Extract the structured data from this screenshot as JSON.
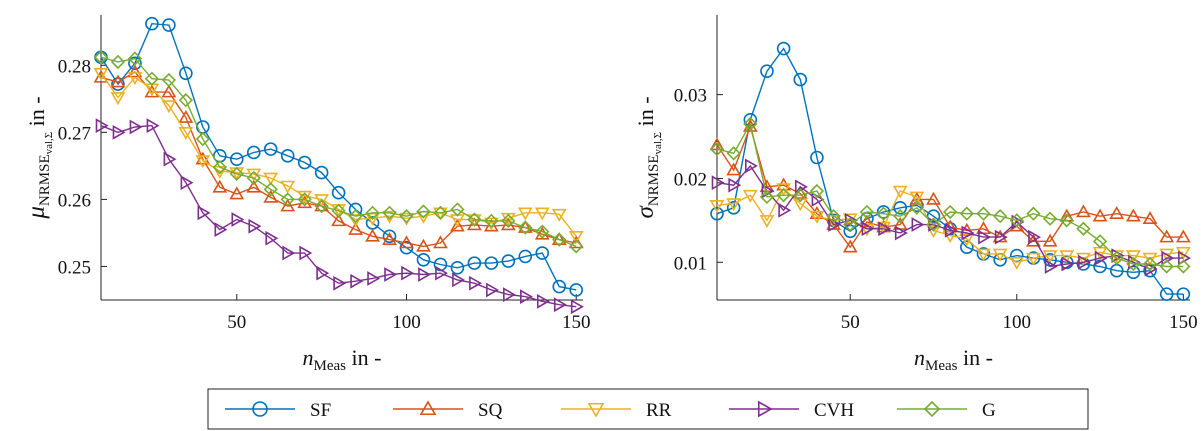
{
  "chart_data": [
    {
      "type": "line",
      "ylabel_main": "μ",
      "ylabel_sub": "NRMSE",
      "ylabel_subsub": "val,Σ",
      "ylabel_unit": " in -",
      "xlabel_main": "n",
      "xlabel_sub": "Meas",
      "xlabel_unit": " in -",
      "xlim": [
        10,
        152
      ],
      "ylim": [
        0.245,
        0.2875
      ],
      "xticks": [
        50,
        100,
        150
      ],
      "yticks": [
        0.25,
        0.26,
        0.27,
        0.28
      ],
      "ytick_labels": [
        "0.25",
        "0.26",
        "0.27",
        "0.28"
      ],
      "x": [
        10,
        15,
        20,
        25,
        30,
        35,
        40,
        45,
        50,
        55,
        60,
        65,
        70,
        75,
        80,
        85,
        90,
        95,
        100,
        105,
        110,
        115,
        120,
        125,
        130,
        135,
        140,
        145,
        150
      ],
      "series": [
        {
          "name": "SF",
          "values": [
            0.2812,
            0.2772,
            0.2803,
            0.2862,
            0.286,
            0.2788,
            0.2708,
            0.2665,
            0.266,
            0.267,
            0.2675,
            0.2665,
            0.2655,
            0.264,
            0.261,
            0.2585,
            0.2565,
            0.2545,
            0.2528,
            0.251,
            0.2503,
            0.2498,
            0.2505,
            0.2505,
            0.2508,
            0.2515,
            0.252,
            0.247,
            0.2465
          ]
        },
        {
          "name": "SQ",
          "values": [
            0.2782,
            0.2775,
            0.279,
            0.276,
            0.276,
            0.2722,
            0.266,
            0.2618,
            0.2608,
            0.2618,
            0.2603,
            0.259,
            0.2595,
            0.259,
            0.2568,
            0.2555,
            0.2545,
            0.254,
            0.2535,
            0.253,
            0.2535,
            0.256,
            0.2562,
            0.256,
            0.2562,
            0.2558,
            0.2548,
            0.254,
            0.2535
          ]
        },
        {
          "name": "RR",
          "values": [
            0.2788,
            0.2752,
            0.2782,
            0.2765,
            0.274,
            0.27,
            0.2658,
            0.2642,
            0.264,
            0.2638,
            0.2632,
            0.262,
            0.2605,
            0.26,
            0.2585,
            0.257,
            0.2572,
            0.2575,
            0.2572,
            0.2575,
            0.258,
            0.257,
            0.257,
            0.2565,
            0.2572,
            0.258,
            0.258,
            0.2578,
            0.2545
          ]
        },
        {
          "name": "CVH",
          "values": [
            0.271,
            0.27,
            0.2708,
            0.271,
            0.266,
            0.2625,
            0.258,
            0.2555,
            0.257,
            0.256,
            0.2542,
            0.252,
            0.252,
            0.249,
            0.2475,
            0.2478,
            0.2482,
            0.2488,
            0.249,
            0.2488,
            0.249,
            0.248,
            0.2475,
            0.2465,
            0.2458,
            0.2455,
            0.2448,
            0.2443,
            0.244
          ]
        },
        {
          "name": "G",
          "values": [
            0.2812,
            0.2805,
            0.281,
            0.278,
            0.2778,
            0.2748,
            0.269,
            0.2648,
            0.2638,
            0.2632,
            0.2615,
            0.26,
            0.26,
            0.259,
            0.2583,
            0.2575,
            0.258,
            0.258,
            0.2575,
            0.2582,
            0.258,
            0.2585,
            0.257,
            0.2568,
            0.2568,
            0.2558,
            0.2552,
            0.254,
            0.253
          ]
        }
      ]
    },
    {
      "type": "line",
      "ylabel_main": "σ",
      "ylabel_sub": "NRMSE",
      "ylabel_subsub": "val,Σ",
      "ylabel_unit": " in -",
      "xlabel_main": "n",
      "xlabel_sub": "Meas",
      "xlabel_unit": " in -",
      "xlim": [
        10,
        152
      ],
      "ylim": [
        0.0055,
        0.0395
      ],
      "xticks": [
        50,
        100,
        150
      ],
      "yticks": [
        0.01,
        0.02,
        0.03
      ],
      "ytick_labels": [
        "0.01",
        "0.02",
        "0.03"
      ],
      "x": [
        10,
        15,
        20,
        25,
        30,
        35,
        40,
        45,
        50,
        55,
        60,
        65,
        70,
        75,
        80,
        85,
        90,
        95,
        100,
        105,
        110,
        115,
        120,
        125,
        130,
        135,
        140,
        145,
        150
      ],
      "series": [
        {
          "name": "SF",
          "values": [
            0.0158,
            0.0165,
            0.027,
            0.0328,
            0.0355,
            0.0318,
            0.0225,
            0.015,
            0.0137,
            0.0152,
            0.016,
            0.0165,
            0.0168,
            0.0155,
            0.014,
            0.0118,
            0.011,
            0.0103,
            0.0108,
            0.0105,
            0.0103,
            0.01,
            0.0098,
            0.0095,
            0.009,
            0.0088,
            0.009,
            0.0062,
            0.0062
          ]
        },
        {
          "name": "SQ",
          "values": [
            0.024,
            0.021,
            0.0262,
            0.019,
            0.0192,
            0.0182,
            0.0158,
            0.0145,
            0.0118,
            0.0148,
            0.0142,
            0.0145,
            0.0175,
            0.0175,
            0.0142,
            0.0138,
            0.014,
            0.013,
            0.0143,
            0.0125,
            0.0125,
            0.0155,
            0.016,
            0.0155,
            0.0158,
            0.0155,
            0.0152,
            0.013,
            0.013
          ]
        },
        {
          "name": "RR",
          "values": [
            0.0168,
            0.017,
            0.018,
            0.015,
            0.0188,
            0.017,
            0.0155,
            0.015,
            0.0152,
            0.014,
            0.0142,
            0.0185,
            0.0178,
            0.0138,
            0.0132,
            0.0128,
            0.011,
            0.011,
            0.01,
            0.0105,
            0.0108,
            0.0108,
            0.0105,
            0.0112,
            0.0108,
            0.0108,
            0.0105,
            0.011,
            0.0112
          ]
        },
        {
          "name": "CVH",
          "values": [
            0.0195,
            0.0192,
            0.0215,
            0.0185,
            0.0162,
            0.019,
            0.0175,
            0.0145,
            0.015,
            0.014,
            0.014,
            0.0135,
            0.0145,
            0.0145,
            0.0138,
            0.0135,
            0.013,
            0.013,
            0.0148,
            0.013,
            0.0095,
            0.0098,
            0.01,
            0.0105,
            0.0108,
            0.01,
            0.0092,
            0.0105,
            0.0105
          ]
        },
        {
          "name": "G",
          "values": [
            0.0235,
            0.023,
            0.0265,
            0.0178,
            0.018,
            0.018,
            0.0185,
            0.0155,
            0.0145,
            0.016,
            0.0158,
            0.0155,
            0.0165,
            0.0145,
            0.016,
            0.0158,
            0.0158,
            0.0155,
            0.015,
            0.0158,
            0.0152,
            0.015,
            0.014,
            0.0125,
            0.0105,
            0.0098,
            0.0098,
            0.0095,
            0.0095
          ]
        }
      ]
    }
  ],
  "legend": [
    {
      "name": "SF",
      "color": "#0072BD",
      "marker": "circle"
    },
    {
      "name": "SQ",
      "color": "#D95319",
      "marker": "triangle-up"
    },
    {
      "name": "RR",
      "color": "#EDB120",
      "marker": "triangle-down"
    },
    {
      "name": "CVH",
      "color": "#7E2F8E",
      "marker": "triangle-right"
    },
    {
      "name": "G",
      "color": "#77AC30",
      "marker": "diamond"
    }
  ]
}
